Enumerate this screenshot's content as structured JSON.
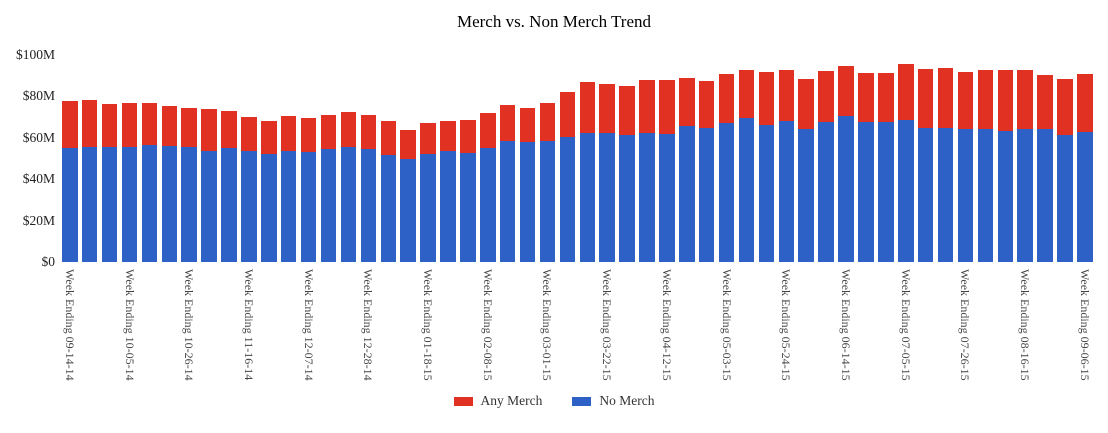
{
  "title": "Merch vs. Non Merch Trend",
  "colors": {
    "any_merch": "#e03123",
    "no_merch": "#2d61c5",
    "axis_text": "#444444"
  },
  "legend": [
    {
      "label": "Any Merch",
      "color_key": "any_merch"
    },
    {
      "label": "No Merch",
      "color_key": "no_merch"
    }
  ],
  "y_axis": {
    "tick_labels": [
      "$0",
      "$20M",
      "$40M",
      "$60M",
      "$80M",
      "$100M"
    ],
    "tick_values": [
      0,
      20,
      40,
      60,
      80,
      100
    ]
  },
  "chart_data": {
    "type": "bar",
    "stacked": true,
    "title": "Merch vs. Non Merch Trend",
    "xlabel": "",
    "ylabel": "",
    "y_unit": "$M",
    "ylim": [
      0,
      100
    ],
    "grid": false,
    "legend_position": "bottom",
    "num_bars": 52,
    "x_tick_every": 3,
    "x_tick_labels": [
      "Week Ending 09-14-14",
      "Week Ending 10-05-14",
      "Week Ending 10-26-14",
      "Week Ending 11-16-14",
      "Week Ending 12-07-14",
      "Week Ending 12-28-14",
      "Week Ending 01-18-15",
      "Week Ending 02-08-15",
      "Week Ending 03-01-15",
      "Week Ending 03-22-15",
      "Week Ending 04-12-15",
      "Week Ending 05-03-15",
      "Week Ending 05-24-15",
      "Week Ending 06-14-15",
      "Week Ending 07-05-15",
      "Week Ending 07-26-15",
      "Week Ending 08-16-15",
      "Week Ending 09-06-15"
    ],
    "series": [
      {
        "name": "No Merch",
        "color": "#2d61c5",
        "values": [
          55,
          55.5,
          55.5,
          55.5,
          56.5,
          56,
          55.5,
          53.5,
          55,
          53.5,
          52,
          53.5,
          53,
          54.5,
          55.5,
          54.5,
          51.5,
          50,
          52,
          53.5,
          52.5,
          55,
          58.5,
          58,
          58.5,
          60.5,
          62.5,
          62.5,
          61.5,
          62.5,
          62,
          65.5,
          65,
          67,
          69.5,
          66,
          68,
          64.5,
          67.5,
          70.5,
          67.5,
          67.5,
          68.5,
          65,
          65,
          64.5,
          64.5,
          63.5,
          64.5,
          64.5,
          61.5,
          63
        ]
      },
      {
        "name": "Any Merch",
        "color": "#e03123",
        "values": [
          23,
          23,
          21,
          21.5,
          20.5,
          19.5,
          19,
          20.5,
          18,
          16.5,
          16,
          17,
          16.5,
          16.5,
          17,
          16.5,
          16.5,
          14,
          15,
          14.5,
          16,
          17,
          17.5,
          16.5,
          18.5,
          21.5,
          24.5,
          23.5,
          23.5,
          25.5,
          26,
          23.5,
          22.5,
          24,
          23.5,
          26,
          25,
          24,
          25,
          24,
          24,
          24,
          27,
          28.5,
          29,
          27.5,
          28.5,
          29.5,
          28.5,
          26,
          27,
          28
        ]
      }
    ]
  }
}
